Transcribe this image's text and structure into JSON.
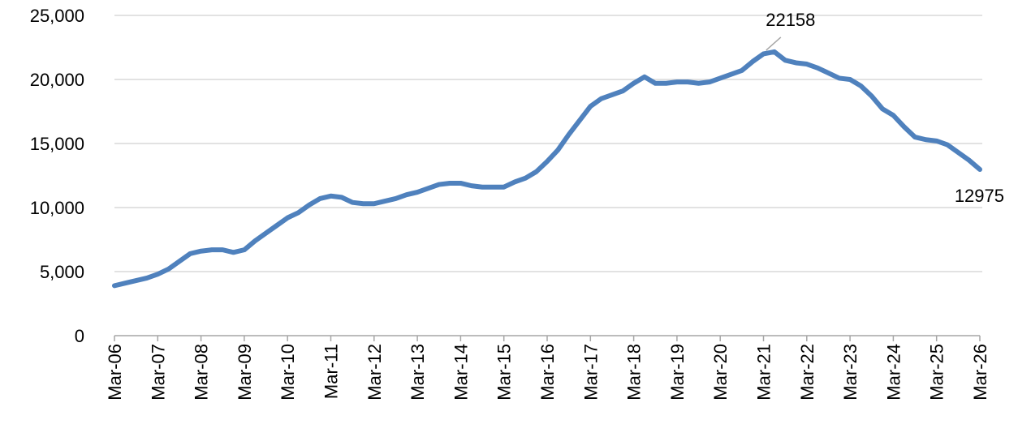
{
  "chart_data": {
    "type": "line",
    "categories": [
      "Mar-06",
      null,
      null,
      null,
      "Mar-07",
      null,
      null,
      null,
      "Mar-08",
      null,
      null,
      null,
      "Mar-09",
      null,
      null,
      null,
      "Mar-10",
      null,
      null,
      null,
      "Mar-11",
      null,
      null,
      null,
      "Mar-12",
      null,
      null,
      null,
      "Mar-13",
      null,
      null,
      null,
      "Mar-14",
      null,
      null,
      null,
      "Mar-15",
      null,
      null,
      null,
      "Mar-16",
      null,
      null,
      null,
      "Mar-17",
      null,
      null,
      null,
      "Mar-18",
      null,
      null,
      null,
      "Mar-19",
      null,
      null,
      null,
      "Mar-20",
      null,
      null,
      null,
      "Mar-21",
      null,
      null,
      null,
      "Mar-22",
      null,
      null,
      null,
      "Mar-23",
      null,
      null,
      null,
      "Mar-24",
      null,
      null,
      null,
      "Mar-25",
      null,
      null,
      null,
      "Mar-26"
    ],
    "values": [
      3900,
      4100,
      4300,
      4500,
      4800,
      5200,
      5800,
      6400,
      6600,
      6700,
      6700,
      6500,
      6700,
      7400,
      8000,
      8600,
      9200,
      9600,
      10200,
      10700,
      10900,
      10800,
      10400,
      10300,
      10300,
      10500,
      10700,
      11000,
      11200,
      11500,
      11800,
      11900,
      11900,
      11700,
      11600,
      11600,
      11600,
      12000,
      12300,
      12800,
      13600,
      14500,
      15700,
      16800,
      17900,
      18500,
      18800,
      19100,
      19700,
      20200,
      19700,
      19700,
      19800,
      19800,
      19700,
      19800,
      20100,
      20400,
      20700,
      21400,
      22000,
      22158,
      21500,
      21300,
      21200,
      20900,
      20500,
      20100,
      20000,
      19500,
      18700,
      17700,
      17200,
      16300,
      15500,
      15300,
      15200,
      14900,
      14300,
      13700,
      12975
    ],
    "value_labels": [
      null,
      null,
      null,
      null,
      null,
      null,
      null,
      null,
      null,
      null,
      null,
      null,
      null,
      null,
      null,
      null,
      null,
      null,
      null,
      null,
      null,
      null,
      null,
      null,
      null,
      null,
      null,
      null,
      null,
      null,
      null,
      null,
      null,
      null,
      null,
      null,
      null,
      null,
      null,
      null,
      null,
      null,
      null,
      null,
      null,
      null,
      null,
      null,
      null,
      null,
      null,
      null,
      null,
      null,
      null,
      null,
      null,
      null,
      null,
      null,
      null,
      "22158",
      null,
      null,
      null,
      null,
      null,
      null,
      null,
      null,
      null,
      null,
      null,
      null,
      null,
      null,
      null,
      null,
      null,
      null,
      "12975"
    ],
    "color": "#4f81bd",
    "ylim": [
      0,
      25000
    ],
    "yticks": [
      0,
      {
        "value": 5000,
        "label": "5,000"
      },
      {
        "value": 10000,
        "label": "10,000"
      },
      {
        "value": 15000,
        "label": "15,000"
      },
      {
        "value": 20000,
        "label": "20,000"
      },
      {
        "value": 25000,
        "label": "25,000"
      }
    ],
    "grid": true
  }
}
